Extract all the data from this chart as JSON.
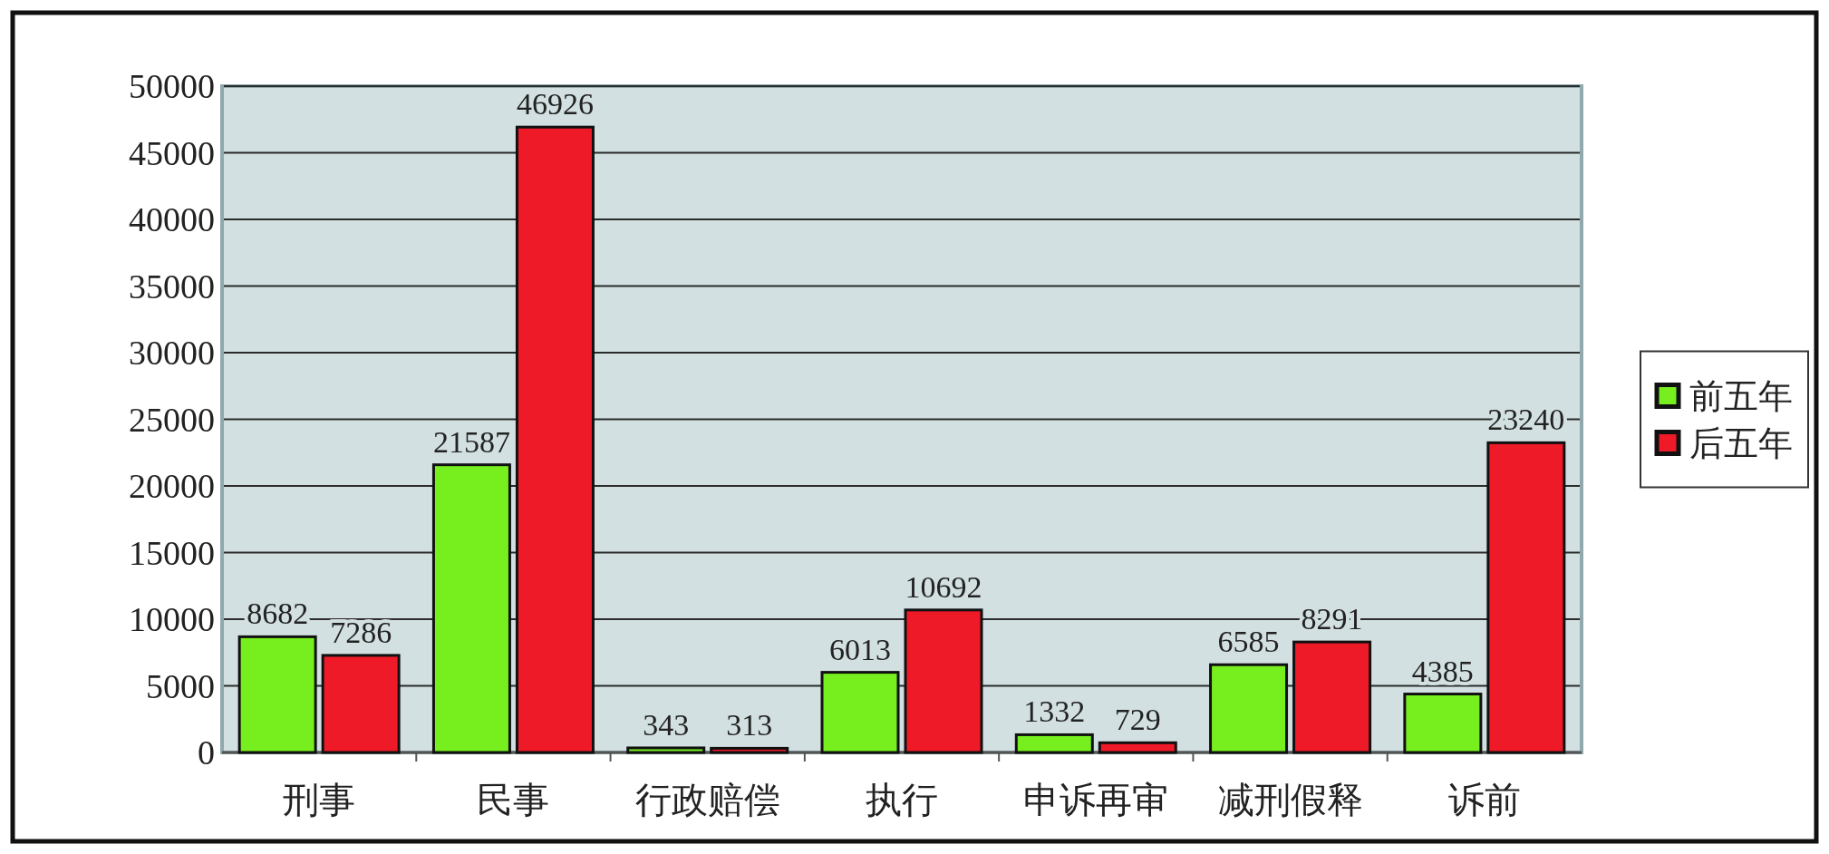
{
  "chart_data": {
    "type": "bar",
    "categories": [
      "刑事",
      "民事",
      "行政赔偿",
      "执行",
      "申诉再审",
      "减刑假释",
      "诉前"
    ],
    "series": [
      {
        "name": "前五年",
        "color": "#77ef1f",
        "values": [
          8682,
          21587,
          343,
          6013,
          1332,
          6585,
          4385
        ]
      },
      {
        "name": "后五年",
        "color": "#ef1a28",
        "values": [
          7286,
          46926,
          313,
          10692,
          729,
          8291,
          23240
        ]
      }
    ],
    "ylim": [
      0,
      50000
    ],
    "yticks": [
      0,
      5000,
      10000,
      15000,
      20000,
      25000,
      30000,
      35000,
      40000,
      45000,
      50000
    ],
    "grid": "y",
    "legend": "right",
    "data_labels": true
  }
}
